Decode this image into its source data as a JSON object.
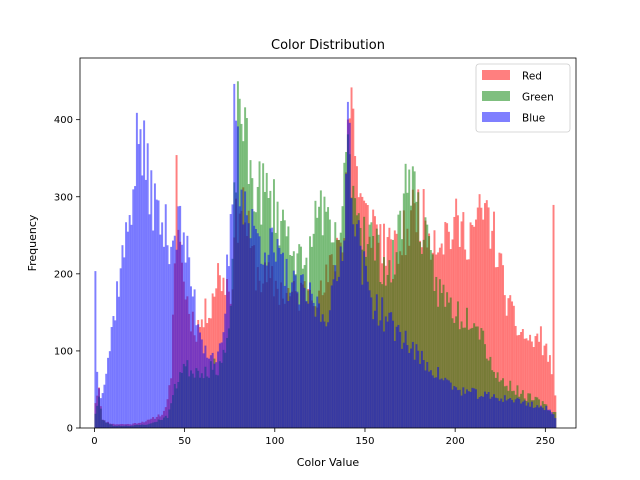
{
  "chart_data": {
    "type": "bar",
    "title": "Color Distribution",
    "xlabel": "Color Value",
    "ylabel": "Frequency",
    "xlim": [
      -8,
      267
    ],
    "ylim": [
      0,
      480
    ],
    "xticks": [
      0,
      50,
      100,
      150,
      200,
      250
    ],
    "yticks": [
      0,
      100,
      200,
      300,
      400
    ],
    "bin_width": 1,
    "legend_position": "top-right",
    "grid": false,
    "series": [
      {
        "name": "Red",
        "color": "#ff0000",
        "alpha": 0.5,
        "anchors": [
          [
            0,
            35
          ],
          [
            2,
            55
          ],
          [
            4,
            10
          ],
          [
            10,
            5
          ],
          [
            20,
            5
          ],
          [
            30,
            10
          ],
          [
            38,
            20
          ],
          [
            42,
            60
          ],
          [
            44,
            200
          ],
          [
            45,
            395
          ],
          [
            46,
            260
          ],
          [
            48,
            210
          ],
          [
            52,
            150
          ],
          [
            56,
            130
          ],
          [
            60,
            140
          ],
          [
            64,
            165
          ],
          [
            68,
            200
          ],
          [
            72,
            190
          ],
          [
            75,
            180
          ],
          [
            78,
            260
          ],
          [
            80,
            300
          ],
          [
            83,
            280
          ],
          [
            86,
            230
          ],
          [
            90,
            200
          ],
          [
            95,
            190
          ],
          [
            100,
            185
          ],
          [
            105,
            175
          ],
          [
            110,
            170
          ],
          [
            115,
            175
          ],
          [
            120,
            190
          ],
          [
            125,
            170
          ],
          [
            130,
            200
          ],
          [
            135,
            245
          ],
          [
            138,
            260
          ],
          [
            140,
            400
          ],
          [
            142,
            425
          ],
          [
            144,
            380
          ],
          [
            146,
            300
          ],
          [
            150,
            270
          ],
          [
            155,
            265
          ],
          [
            160,
            240
          ],
          [
            165,
            220
          ],
          [
            170,
            240
          ],
          [
            175,
            270
          ],
          [
            178,
            290
          ],
          [
            182,
            270
          ],
          [
            186,
            255
          ],
          [
            190,
            250
          ],
          [
            195,
            255
          ],
          [
            200,
            260
          ],
          [
            204,
            255
          ],
          [
            208,
            255
          ],
          [
            212,
            265
          ],
          [
            215,
            280
          ],
          [
            218,
            270
          ],
          [
            222,
            240
          ],
          [
            226,
            190
          ],
          [
            230,
            150
          ],
          [
            234,
            130
          ],
          [
            238,
            120
          ],
          [
            242,
            110
          ],
          [
            246,
            120
          ],
          [
            250,
            100
          ],
          [
            253,
            80
          ],
          [
            254,
            255
          ],
          [
            255,
            40
          ]
        ],
        "seed": 11
      },
      {
        "name": "Green",
        "color": "#008000",
        "alpha": 0.5,
        "anchors": [
          [
            0,
            20
          ],
          [
            2,
            40
          ],
          [
            4,
            10
          ],
          [
            10,
            3
          ],
          [
            20,
            3
          ],
          [
            30,
            5
          ],
          [
            40,
            15
          ],
          [
            44,
            50
          ],
          [
            48,
            80
          ],
          [
            55,
            75
          ],
          [
            62,
            75
          ],
          [
            68,
            80
          ],
          [
            72,
            100
          ],
          [
            75,
            140
          ],
          [
            78,
            350
          ],
          [
            80,
            440
          ],
          [
            82,
            395
          ],
          [
            84,
            350
          ],
          [
            87,
            320
          ],
          [
            90,
            310
          ],
          [
            95,
            300
          ],
          [
            100,
            285
          ],
          [
            105,
            260
          ],
          [
            108,
            250
          ],
          [
            112,
            225
          ],
          [
            115,
            200
          ],
          [
            118,
            210
          ],
          [
            122,
            270
          ],
          [
            125,
            300
          ],
          [
            128,
            260
          ],
          [
            132,
            230
          ],
          [
            136,
            260
          ],
          [
            140,
            355
          ],
          [
            142,
            345
          ],
          [
            144,
            300
          ],
          [
            148,
            265
          ],
          [
            152,
            250
          ],
          [
            158,
            220
          ],
          [
            164,
            200
          ],
          [
            168,
            250
          ],
          [
            172,
            310
          ],
          [
            174,
            355
          ],
          [
            176,
            320
          ],
          [
            180,
            270
          ],
          [
            185,
            220
          ],
          [
            190,
            180
          ],
          [
            195,
            165
          ],
          [
            200,
            150
          ],
          [
            205,
            145
          ],
          [
            210,
            150
          ],
          [
            215,
            120
          ],
          [
            220,
            80
          ],
          [
            225,
            60
          ],
          [
            230,
            55
          ],
          [
            236,
            45
          ],
          [
            240,
            40
          ],
          [
            245,
            35
          ],
          [
            250,
            28
          ],
          [
            253,
            20
          ],
          [
            255,
            20
          ]
        ],
        "seed": 23
      },
      {
        "name": "Blue",
        "color": "#0000ff",
        "alpha": 0.5,
        "anchors": [
          [
            0,
            220
          ],
          [
            1,
            70
          ],
          [
            3,
            45
          ],
          [
            5,
            60
          ],
          [
            8,
            105
          ],
          [
            11,
            160
          ],
          [
            14,
            210
          ],
          [
            17,
            240
          ],
          [
            20,
            300
          ],
          [
            22,
            345
          ],
          [
            24,
            385
          ],
          [
            26,
            365
          ],
          [
            28,
            330
          ],
          [
            31,
            310
          ],
          [
            34,
            280
          ],
          [
            37,
            260
          ],
          [
            40,
            250
          ],
          [
            43,
            250
          ],
          [
            46,
            265
          ],
          [
            49,
            245
          ],
          [
            52,
            205
          ],
          [
            56,
            150
          ],
          [
            60,
            110
          ],
          [
            64,
            95
          ],
          [
            68,
            90
          ],
          [
            71,
            110
          ],
          [
            73,
            200
          ],
          [
            75,
            250
          ],
          [
            77,
            395
          ],
          [
            78,
            440
          ],
          [
            80,
            330
          ],
          [
            83,
            290
          ],
          [
            86,
            260
          ],
          [
            89,
            250
          ],
          [
            92,
            245
          ],
          [
            95,
            240
          ],
          [
            98,
            230
          ],
          [
            102,
            215
          ],
          [
            106,
            195
          ],
          [
            110,
            180
          ],
          [
            114,
            175
          ],
          [
            118,
            170
          ],
          [
            122,
            160
          ],
          [
            127,
            145
          ],
          [
            131,
            170
          ],
          [
            135,
            200
          ],
          [
            138,
            280
          ],
          [
            140,
            400
          ],
          [
            142,
            345
          ],
          [
            144,
            270
          ],
          [
            146,
            240
          ],
          [
            150,
            190
          ],
          [
            154,
            165
          ],
          [
            158,
            150
          ],
          [
            162,
            140
          ],
          [
            166,
            128
          ],
          [
            170,
            120
          ],
          [
            175,
            105
          ],
          [
            180,
            90
          ],
          [
            185,
            80
          ],
          [
            190,
            70
          ],
          [
            195,
            60
          ],
          [
            200,
            50
          ],
          [
            210,
            45
          ],
          [
            220,
            40
          ],
          [
            230,
            38
          ],
          [
            240,
            32
          ],
          [
            250,
            25
          ],
          [
            253,
            20
          ],
          [
            255,
            15
          ]
        ],
        "seed": 37
      }
    ]
  }
}
